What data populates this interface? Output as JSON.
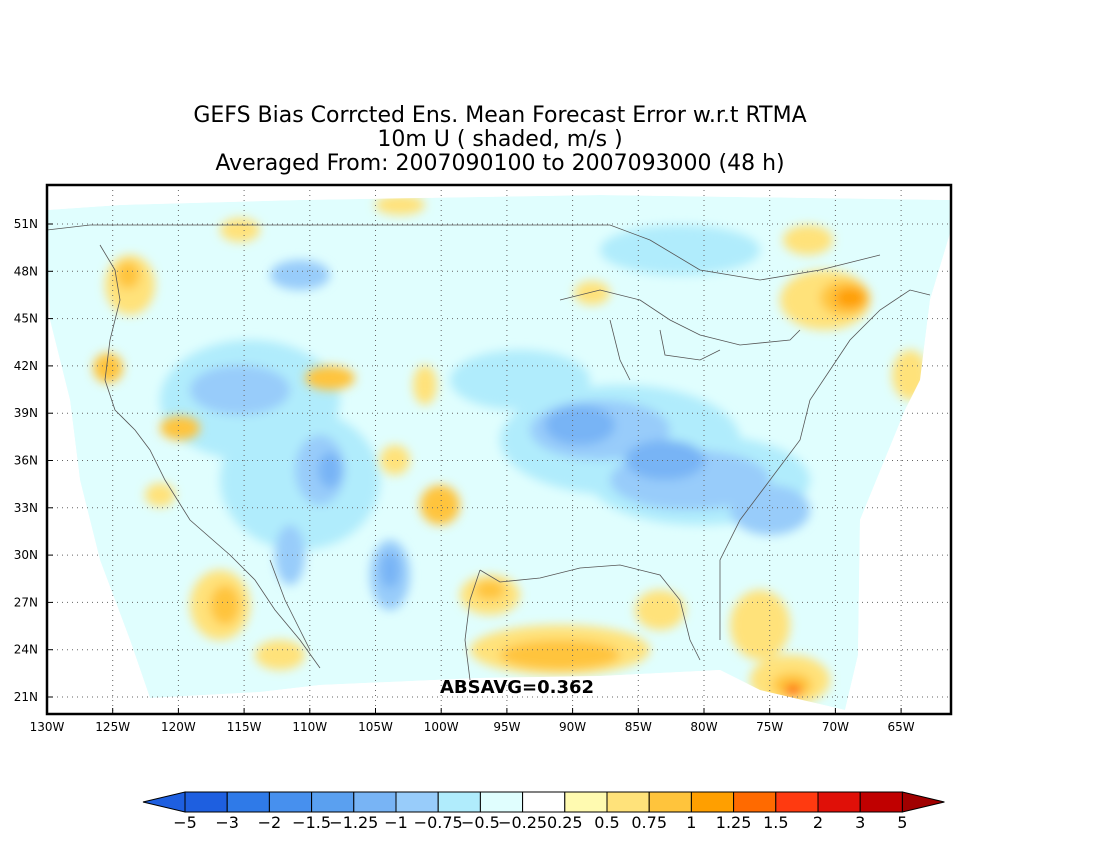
{
  "title": {
    "line1": "GEFS Bias Corrcted Ens. Mean Forecast Error w.r.t RTMA",
    "line2": "10m U ( shaded, m/s )",
    "line3": "Averaged From: 2007090100 to 2007093000 (48 h)"
  },
  "map": {
    "lat_ticks": [
      "51N",
      "48N",
      "45N",
      "42N",
      "39N",
      "36N",
      "33N",
      "30N",
      "27N",
      "24N",
      "21N"
    ],
    "lon_ticks": [
      "130W",
      "125W",
      "120W",
      "115W",
      "110W",
      "105W",
      "100W",
      "95W",
      "90W",
      "85W",
      "80W",
      "75W",
      "70W",
      "65W"
    ],
    "absavg": "ABSAVG=0.362"
  },
  "colorbar": {
    "labels": [
      "−5",
      "−3",
      "−2",
      "−1.5",
      "−1.25",
      "−1",
      "−0.75",
      "−0.5",
      "−0.25",
      "0.25",
      "0.5",
      "0.75",
      "1",
      "1.25",
      "1.5",
      "2",
      "3",
      "5"
    ],
    "colors": [
      "#1e5fe0",
      "#2f7ae8",
      "#4790ee",
      "#5aa0f0",
      "#78b4f5",
      "#98ccfa",
      "#b0ecfc",
      "#e0fefe",
      "#ffffff",
      "#fffab0",
      "#ffe27a",
      "#ffc43c",
      "#ff9f00",
      "#ff6a00",
      "#ff3a10",
      "#e01008",
      "#c00000",
      "#a00000"
    ]
  },
  "fields": {
    "palette": {
      "bneg5": "#1e5fe0",
      "bneg3": "#2f7ae8",
      "bneg2": "#4790ee",
      "bneg15": "#5aa0f0",
      "bneg125": "#78b4f5",
      "bneg1": "#98ccfa",
      "bneg075": "#b0ecfc",
      "bneg05": "#e0fefe",
      "p025": "#fffab0",
      "p05": "#ffe27a",
      "p075": "#ffc43c",
      "p1": "#ff9f00",
      "p125": "#ff6a00",
      "p15": "#ff3a10",
      "p2": "#e01008"
    }
  }
}
